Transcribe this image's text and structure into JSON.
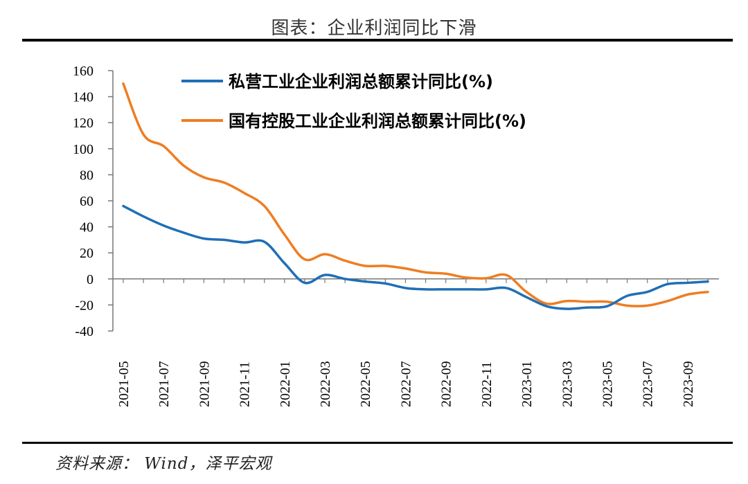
{
  "figure": {
    "title": "图表：企业利润同比下滑",
    "source": "资料来源： Wind，泽平宏观"
  },
  "chart_data": {
    "type": "line",
    "ylim": [
      -40,
      160
    ],
    "yticks": [
      160,
      140,
      120,
      100,
      80,
      60,
      40,
      20,
      0,
      -20,
      -40
    ],
    "ytick_labels": [
      "160",
      "140",
      "120",
      "100",
      "80",
      "60",
      "40",
      "20",
      "0",
      "-20",
      "-40"
    ],
    "x": [
      "2021-05",
      "2021-06",
      "2021-07",
      "2021-08",
      "2021-09",
      "2021-10",
      "2021-11",
      "2021-12",
      "2022-01",
      "2022-02",
      "2022-03",
      "2022-04",
      "2022-05",
      "2022-06",
      "2022-07",
      "2022-08",
      "2022-09",
      "2022-10",
      "2022-11",
      "2022-12",
      "2023-01",
      "2023-02",
      "2023-03",
      "2023-04",
      "2023-05",
      "2023-06",
      "2023-07",
      "2023-08",
      "2023-09",
      "2023-10"
    ],
    "xtick_labels": [
      "2021-05",
      "2021-07",
      "2021-09",
      "2021-11",
      "2022-01",
      "2022-03",
      "2022-05",
      "2022-07",
      "2022-09",
      "2022-11",
      "2023-01",
      "2023-03",
      "2023-05",
      "2023-07",
      "2023-09"
    ],
    "legend_position": "top-center",
    "series": [
      {
        "name": "私营工业企业利润总额累计同比(%)",
        "color": "#1f6fb5",
        "values": [
          56,
          48,
          41,
          35.5,
          31,
          30,
          28,
          28.5,
          12,
          -3,
          3,
          0,
          -2,
          -3.5,
          -7,
          -8,
          -8,
          -8,
          -8,
          -7,
          -14,
          -21,
          -23,
          -22,
          -21,
          -13,
          -10,
          -4,
          -3,
          -2
        ]
      },
      {
        "name": "国有控股工业企业利润总额累计同比(%)",
        "color": "#ee7d22",
        "values": [
          150,
          111,
          102,
          87,
          78,
          74,
          66,
          56,
          34,
          15,
          19,
          14,
          10,
          10,
          8,
          5,
          4,
          1,
          0.5,
          3,
          -10,
          -19,
          -17,
          -17.5,
          -17.5,
          -20.5,
          -20.5,
          -17,
          -12,
          -10
        ]
      }
    ]
  }
}
